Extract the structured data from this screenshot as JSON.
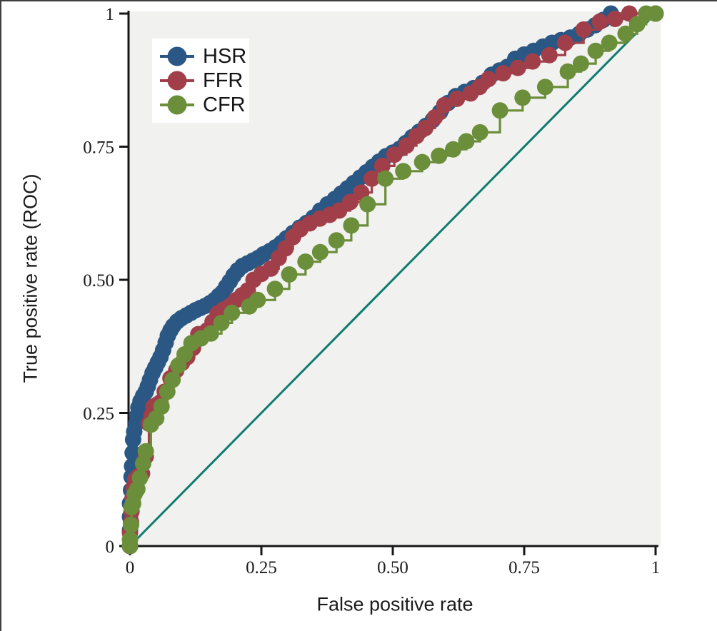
{
  "figure": {
    "background": "#ffffff",
    "plot_background": "#f1f1ef",
    "axis_color": "#161616",
    "text_color": "#1b1b1b",
    "outer_border_color": "#3f3f3f"
  },
  "chart_data": {
    "type": "line",
    "subtype": "roc-step-curves",
    "title": "",
    "xlabel": "False positive rate",
    "ylabel": "True positive rate (ROC)",
    "xlim": [
      0,
      1
    ],
    "ylim": [
      0,
      1
    ],
    "grid": false,
    "legend_position": "top-left",
    "xticks": {
      "values": [
        0,
        0.25,
        0.5,
        0.75,
        1
      ],
      "labels": [
        "0",
        "0.25",
        "0.50",
        "0.75",
        "1"
      ]
    },
    "yticks": {
      "values": [
        0,
        0.25,
        0.5,
        0.75,
        1
      ],
      "labels": [
        "0",
        "0.25",
        "0.50",
        "0.75",
        "1"
      ]
    },
    "reference_line": {
      "name": "chance-diagonal",
      "from": [
        0,
        0
      ],
      "to": [
        1,
        1
      ],
      "color": "#0f7b6f"
    },
    "series": [
      {
        "name": "HSR",
        "color": "#2a5783",
        "marker": "circle",
        "marker_radius": 11.5,
        "points": [
          [
            0,
            0
          ],
          [
            0,
            0.03
          ],
          [
            0,
            0.055
          ],
          [
            0,
            0.08
          ],
          [
            0.002,
            0.105
          ],
          [
            0.003,
            0.13
          ],
          [
            0.004,
            0.15
          ],
          [
            0.005,
            0.175
          ],
          [
            0.006,
            0.2
          ],
          [
            0.008,
            0.215
          ],
          [
            0.012,
            0.23
          ],
          [
            0.014,
            0.245
          ],
          [
            0.016,
            0.26
          ],
          [
            0.02,
            0.272
          ],
          [
            0.025,
            0.282
          ],
          [
            0.03,
            0.29
          ],
          [
            0.034,
            0.3
          ],
          [
            0.038,
            0.312
          ],
          [
            0.043,
            0.325
          ],
          [
            0.048,
            0.335
          ],
          [
            0.053,
            0.345
          ],
          [
            0.058,
            0.355
          ],
          [
            0.063,
            0.368
          ],
          [
            0.068,
            0.382
          ],
          [
            0.072,
            0.395
          ],
          [
            0.077,
            0.405
          ],
          [
            0.082,
            0.413
          ],
          [
            0.09,
            0.422
          ],
          [
            0.098,
            0.428
          ],
          [
            0.107,
            0.433
          ],
          [
            0.116,
            0.438
          ],
          [
            0.125,
            0.443
          ],
          [
            0.134,
            0.447
          ],
          [
            0.143,
            0.451
          ],
          [
            0.152,
            0.456
          ],
          [
            0.161,
            0.462
          ],
          [
            0.169,
            0.47
          ],
          [
            0.176,
            0.476
          ],
          [
            0.183,
            0.487
          ],
          [
            0.19,
            0.497
          ],
          [
            0.197,
            0.508
          ],
          [
            0.205,
            0.518
          ],
          [
            0.214,
            0.526
          ],
          [
            0.224,
            0.531
          ],
          [
            0.234,
            0.536
          ],
          [
            0.244,
            0.541
          ],
          [
            0.254,
            0.548
          ],
          [
            0.266,
            0.554
          ],
          [
            0.277,
            0.561
          ],
          [
            0.288,
            0.569
          ],
          [
            0.298,
            0.578
          ],
          [
            0.31,
            0.588
          ],
          [
            0.323,
            0.598
          ],
          [
            0.336,
            0.607
          ],
          [
            0.349,
            0.617
          ],
          [
            0.362,
            0.63
          ],
          [
            0.376,
            0.642
          ],
          [
            0.39,
            0.652
          ],
          [
            0.402,
            0.662
          ],
          [
            0.414,
            0.672
          ],
          [
            0.426,
            0.682
          ],
          [
            0.438,
            0.692
          ],
          [
            0.45,
            0.702
          ],
          [
            0.462,
            0.712
          ],
          [
            0.474,
            0.722
          ],
          [
            0.487,
            0.732
          ],
          [
            0.5,
            0.739
          ],
          [
            0.513,
            0.746
          ],
          [
            0.525,
            0.757
          ],
          [
            0.537,
            0.768
          ],
          [
            0.55,
            0.778
          ],
          [
            0.563,
            0.789
          ],
          [
            0.576,
            0.8
          ],
          [
            0.59,
            0.815
          ],
          [
            0.605,
            0.832
          ],
          [
            0.62,
            0.845
          ],
          [
            0.637,
            0.853
          ],
          [
            0.654,
            0.86
          ],
          [
            0.671,
            0.87
          ],
          [
            0.688,
            0.885
          ],
          [
            0.703,
            0.893
          ],
          [
            0.718,
            0.9
          ],
          [
            0.733,
            0.915
          ],
          [
            0.75,
            0.923
          ],
          [
            0.768,
            0.93
          ],
          [
            0.786,
            0.938
          ],
          [
            0.803,
            0.945
          ],
          [
            0.82,
            0.95
          ],
          [
            0.838,
            0.955
          ],
          [
            0.855,
            0.962
          ],
          [
            0.87,
            0.97
          ],
          [
            0.885,
            0.978
          ],
          [
            0.9,
            0.988
          ],
          [
            0.915,
            1
          ],
          [
            1,
            1
          ]
        ]
      },
      {
        "name": "FFR",
        "color": "#a03f4a",
        "marker": "circle",
        "marker_radius": 11.5,
        "points": [
          [
            0,
            0
          ],
          [
            0,
            0.025
          ],
          [
            0.002,
            0.045
          ],
          [
            0.003,
            0.065
          ],
          [
            0.005,
            0.09
          ],
          [
            0.007,
            0.11
          ],
          [
            0.01,
            0.125
          ],
          [
            0.016,
            0.131
          ],
          [
            0.023,
            0.136
          ],
          [
            0.03,
            0.168
          ],
          [
            0.036,
            0.23
          ],
          [
            0.041,
            0.245
          ],
          [
            0.045,
            0.262
          ],
          [
            0.052,
            0.266
          ],
          [
            0.058,
            0.27
          ],
          [
            0.066,
            0.29
          ],
          [
            0.077,
            0.315
          ],
          [
            0.088,
            0.33
          ],
          [
            0.099,
            0.344
          ],
          [
            0.109,
            0.355
          ],
          [
            0.12,
            0.372
          ],
          [
            0.13,
            0.398
          ],
          [
            0.147,
            0.405
          ],
          [
            0.157,
            0.421
          ],
          [
            0.167,
            0.437
          ],
          [
            0.178,
            0.444
          ],
          [
            0.19,
            0.451
          ],
          [
            0.202,
            0.462
          ],
          [
            0.213,
            0.471
          ],
          [
            0.224,
            0.48
          ],
          [
            0.235,
            0.5
          ],
          [
            0.25,
            0.511
          ],
          [
            0.268,
            0.521
          ],
          [
            0.283,
            0.541
          ],
          [
            0.296,
            0.559
          ],
          [
            0.31,
            0.58
          ],
          [
            0.324,
            0.595
          ],
          [
            0.342,
            0.606
          ],
          [
            0.361,
            0.615
          ],
          [
            0.38,
            0.622
          ],
          [
            0.398,
            0.63
          ],
          [
            0.419,
            0.646
          ],
          [
            0.44,
            0.664
          ],
          [
            0.46,
            0.69
          ],
          [
            0.48,
            0.714
          ],
          [
            0.503,
            0.735
          ],
          [
            0.526,
            0.752
          ],
          [
            0.545,
            0.77
          ],
          [
            0.562,
            0.785
          ],
          [
            0.58,
            0.805
          ],
          [
            0.598,
            0.828
          ],
          [
            0.622,
            0.84
          ],
          [
            0.648,
            0.85
          ],
          [
            0.665,
            0.862
          ],
          [
            0.682,
            0.877
          ],
          [
            0.71,
            0.888
          ],
          [
            0.738,
            0.898
          ],
          [
            0.766,
            0.91
          ],
          [
            0.798,
            0.922
          ],
          [
            0.828,
            0.945
          ],
          [
            0.863,
            0.97
          ],
          [
            0.894,
            0.985
          ],
          [
            0.923,
            0.99
          ],
          [
            0.95,
            1
          ],
          [
            1,
            1
          ]
        ]
      },
      {
        "name": "CFR",
        "color": "#6b8e3b",
        "marker": "circle",
        "marker_radius": 11.5,
        "points": [
          [
            0,
            0
          ],
          [
            0,
            0.012
          ],
          [
            0.002,
            0.04
          ],
          [
            0.003,
            0.073
          ],
          [
            0.006,
            0.08
          ],
          [
            0.009,
            0.098
          ],
          [
            0.014,
            0.107
          ],
          [
            0.019,
            0.128
          ],
          [
            0.025,
            0.155
          ],
          [
            0.03,
            0.178
          ],
          [
            0.04,
            0.228
          ],
          [
            0.05,
            0.24
          ],
          [
            0.06,
            0.262
          ],
          [
            0.071,
            0.29
          ],
          [
            0.081,
            0.312
          ],
          [
            0.092,
            0.339
          ],
          [
            0.104,
            0.36
          ],
          [
            0.117,
            0.381
          ],
          [
            0.135,
            0.39
          ],
          [
            0.154,
            0.399
          ],
          [
            0.174,
            0.419
          ],
          [
            0.194,
            0.438
          ],
          [
            0.227,
            0.45
          ],
          [
            0.243,
            0.462
          ],
          [
            0.276,
            0.483
          ],
          [
            0.303,
            0.51
          ],
          [
            0.334,
            0.534
          ],
          [
            0.362,
            0.552
          ],
          [
            0.393,
            0.574
          ],
          [
            0.421,
            0.602
          ],
          [
            0.452,
            0.642
          ],
          [
            0.486,
            0.69
          ],
          [
            0.52,
            0.704
          ],
          [
            0.556,
            0.721
          ],
          [
            0.588,
            0.733
          ],
          [
            0.615,
            0.745
          ],
          [
            0.64,
            0.76
          ],
          [
            0.666,
            0.777
          ],
          [
            0.704,
            0.818
          ],
          [
            0.747,
            0.842
          ],
          [
            0.79,
            0.862
          ],
          [
            0.833,
            0.891
          ],
          [
            0.858,
            0.906
          ],
          [
            0.886,
            0.93
          ],
          [
            0.912,
            0.945
          ],
          [
            0.943,
            0.962
          ],
          [
            0.965,
            0.98
          ],
          [
            0.982,
            1
          ],
          [
            1,
            1
          ]
        ]
      }
    ]
  }
}
